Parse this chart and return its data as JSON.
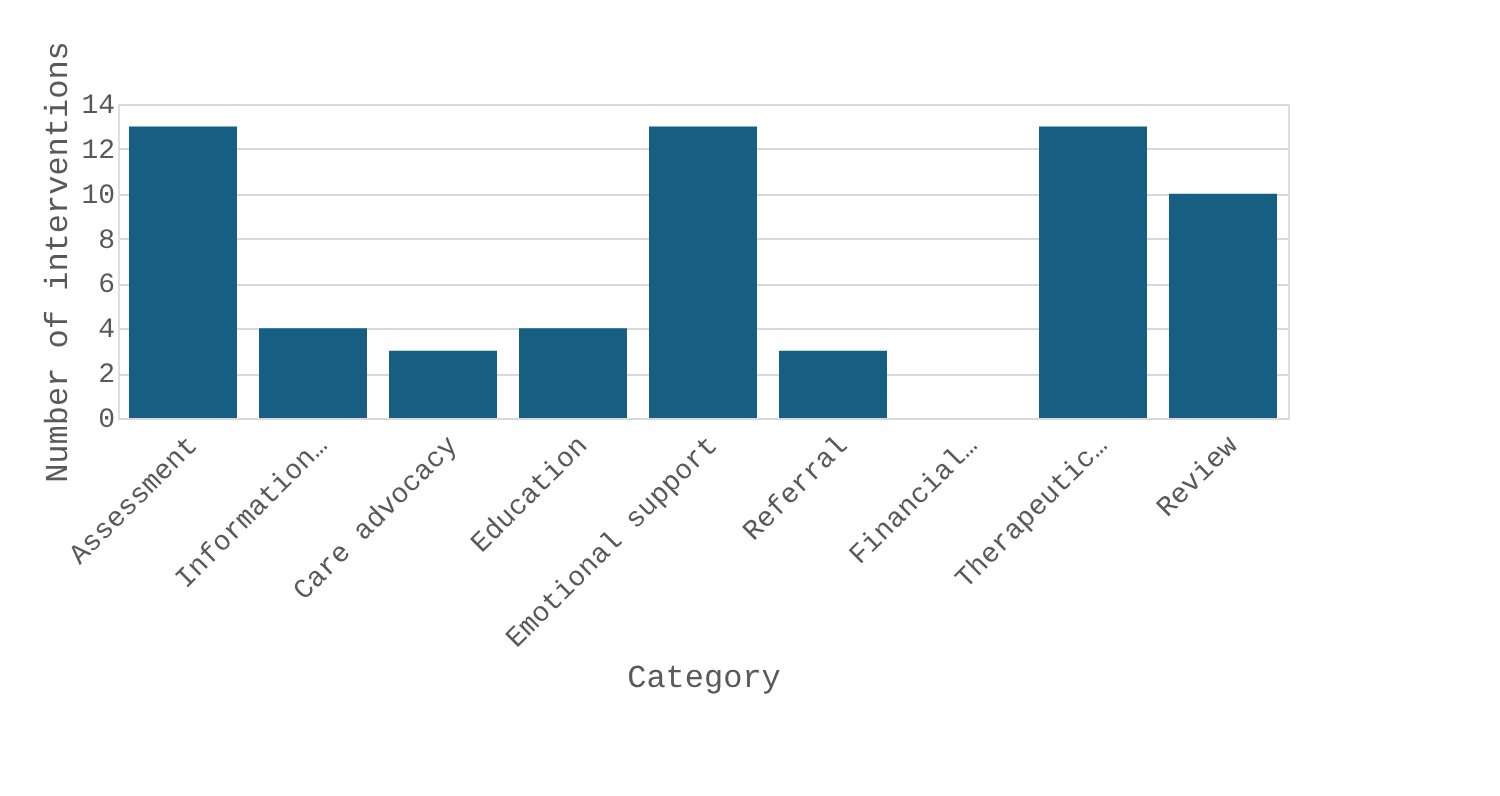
{
  "chart_data": {
    "type": "bar",
    "xlabel": "Category",
    "ylabel": "Number of interventions",
    "categories": [
      "Assessment",
      "Information…",
      "Care advocacy",
      "Education",
      "Emotional support",
      "Referral",
      "Financial…",
      "Therapeutic…",
      "Review"
    ],
    "values": [
      13,
      4,
      3,
      4,
      13,
      3,
      0,
      13,
      10
    ],
    "color": "#175e83",
    "ylim": [
      0,
      14
    ],
    "yticks": [
      0,
      2,
      4,
      6,
      8,
      10,
      12,
      14
    ],
    "grid": "y"
  }
}
